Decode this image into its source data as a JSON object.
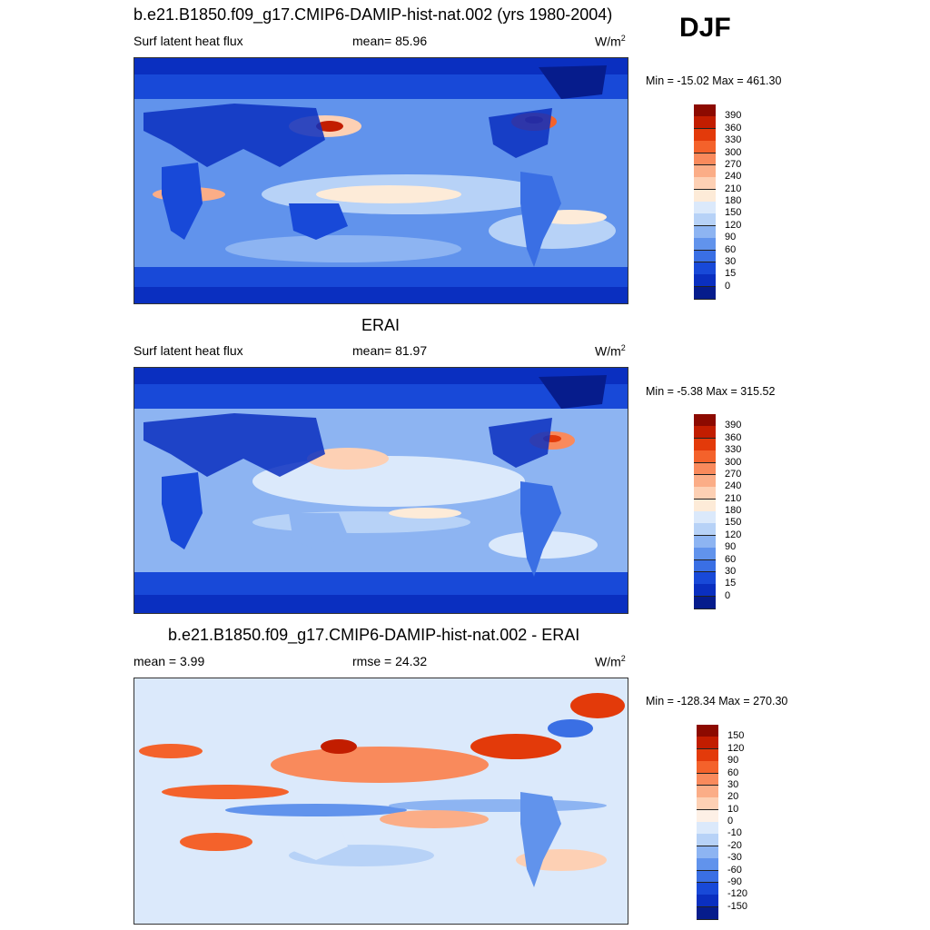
{
  "season": "DJF",
  "panels": [
    {
      "title": "b.e21.B1850.f09_g17.CMIP6-DAMIP-hist-nat.002 (yrs 1980-2004)",
      "left_label": "Surf latent heat flux",
      "center_label": "mean=  85.96",
      "units": "W/m",
      "units_sup": "2",
      "minmax": "Min = -15.02 Max = 461.30",
      "kind": "abs"
    },
    {
      "title": "ERAI",
      "left_label": "Surf latent heat flux",
      "center_label": "mean=  81.97",
      "units": "W/m",
      "units_sup": "2",
      "minmax": "Min =  -5.38 Max = 315.52",
      "kind": "abs"
    },
    {
      "title": "b.e21.B1850.f09_g17.CMIP6-DAMIP-hist-nat.002 - ERAI",
      "left_label": "mean =   3.99",
      "center_label": "rmse =  24.32",
      "units": "W/m",
      "units_sup": "2",
      "minmax": "Min = -128.34 Max = 270.30",
      "kind": "diff"
    }
  ],
  "colorbars": {
    "abs": {
      "labels": [
        "390",
        "360",
        "330",
        "300",
        "270",
        "240",
        "210",
        "180",
        "150",
        "120",
        "90",
        "60",
        "30",
        "15",
        "0"
      ],
      "colors": [
        "#8c0a00",
        "#c21d00",
        "#e33a0a",
        "#f4622b",
        "#f98a5c",
        "#fbad87",
        "#fdd0b4",
        "#fdebd8",
        "#dbe9fb",
        "#b7d2f7",
        "#8db4f2",
        "#6193ec",
        "#3a6fe4",
        "#1849d8",
        "#0a2fc0",
        "#061c8c"
      ]
    },
    "diff": {
      "labels": [
        "150",
        "120",
        "90",
        "60",
        "30",
        "20",
        "10",
        "0",
        "-10",
        "-20",
        "-30",
        "-60",
        "-90",
        "-120",
        "-150"
      ],
      "colors": [
        "#8c0a00",
        "#c21d00",
        "#e33a0a",
        "#f4622b",
        "#f98a5c",
        "#fbad87",
        "#fdd0b4",
        "#fdf0e6",
        "#dbe9fb",
        "#b7d2f7",
        "#8db4f2",
        "#6193ec",
        "#3a6fe4",
        "#1849d8",
        "#0a2fc0",
        "#061c8c"
      ]
    }
  }
}
